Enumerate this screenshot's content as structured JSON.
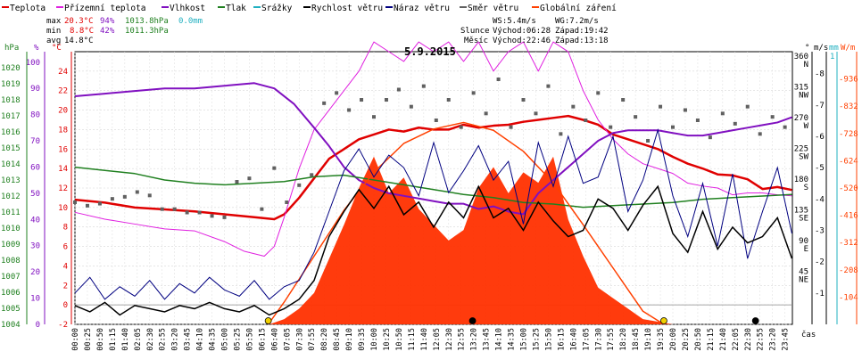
{
  "chart_data": {
    "type": "line",
    "title": "5.9.2015",
    "legend": [
      {
        "label": "Teplota",
        "color": "#e00000"
      },
      {
        "label": "Přízemní teplota",
        "color": "#e020e0"
      },
      {
        "label": "Vlhkost",
        "color": "#8010c0"
      },
      {
        "label": "Tlak",
        "color": "#208020"
      },
      {
        "label": "Srážky",
        "color": "#20b0c0"
      },
      {
        "label": "Rychlost větru",
        "color": "#000000"
      },
      {
        "label": "Náraz větru",
        "color": "#000080"
      },
      {
        "label": "Směr větru",
        "color": "#606060"
      },
      {
        "label": "Globální záření",
        "color": "#ff4000"
      }
    ],
    "stats": {
      "max": {
        "label": "max",
        "temp": "20.3°C",
        "hum": "94%",
        "press": "1013.8hPa",
        "rain": "0.0mm"
      },
      "min": {
        "label": "min",
        "temp": "8.8°C",
        "hum": "42%",
        "press": "1011.3hPa"
      },
      "avg": {
        "label": "avg",
        "temp": "14.8°C"
      }
    },
    "wind": {
      "ws": "WS:5.4m/s",
      "wg": "WG:7.2m/s"
    },
    "sun": {
      "label": "Slunce",
      "rise": "Východ:06:28",
      "set": "Západ:19:42"
    },
    "moon": {
      "label": "Měsíc",
      "rise": "Východ:22:46",
      "set": "Západ:13:18"
    },
    "axes": {
      "hpa_label": "hPa",
      "pct_label": "%",
      "deg_label": "°C",
      "hpa_ticks": [
        "1004",
        "1005",
        "1006",
        "1007",
        "1008",
        "1009",
        "1010",
        "1011",
        "1012",
        "1013",
        "1014",
        "1015",
        "1016",
        "1017",
        "1018",
        "1019",
        "1020"
      ],
      "pct_ticks": [
        "0",
        "10",
        "20",
        "30",
        "40",
        "50",
        "60",
        "70",
        "80",
        "90",
        "100"
      ],
      "temp_ticks": [
        "-2",
        "0",
        "2",
        "4",
        "6",
        "8",
        "10",
        "12",
        "14",
        "16",
        "18",
        "20",
        "22",
        "24"
      ],
      "dir_label": "°",
      "dir_ticks": [
        {
          "deg": "45",
          "c": "NE"
        },
        {
          "deg": "90",
          "c": "E"
        },
        {
          "deg": "135",
          "c": "SE"
        },
        {
          "deg": "180",
          "c": "S"
        },
        {
          "deg": "225",
          "c": "SW"
        },
        {
          "deg": "270",
          "c": "W"
        },
        {
          "deg": "315",
          "c": "NW"
        },
        {
          "deg": "360",
          "c": "N"
        }
      ],
      "ms_label": "m/s",
      "mm_label": "mm",
      "wm_label": "W/m",
      "ms_ticks": [
        "1",
        "2",
        "3",
        "4",
        "5",
        "6",
        "7",
        "8"
      ],
      "mm_top": "1",
      "wm_ticks": [
        "104",
        "208",
        "312",
        "416",
        "520",
        "624",
        "728",
        "832",
        "936"
      ],
      "time_label": "čas",
      "temp_range": [
        -2,
        26
      ],
      "pct_range": [
        0,
        104
      ],
      "hpa_range": [
        1004,
        1021
      ],
      "ms_range": [
        0,
        8.7
      ],
      "wm_range": [
        0,
        1040
      ],
      "x_range_min": [
        0,
        1440
      ],
      "x_ticks": [
        "00:00",
        "00:25",
        "00:50",
        "01:15",
        "01:40",
        "02:05",
        "02:30",
        "02:55",
        "03:20",
        "03:45",
        "04:10",
        "04:35",
        "05:00",
        "05:25",
        "05:50",
        "06:15",
        "06:40",
        "07:05",
        "07:30",
        "07:55",
        "08:20",
        "08:45",
        "09:10",
        "09:35",
        "10:00",
        "10:25",
        "10:50",
        "11:15",
        "11:40",
        "12:05",
        "12:30",
        "12:55",
        "13:20",
        "13:45",
        "14:10",
        "14:35",
        "15:00",
        "15:25",
        "15:50",
        "16:15",
        "16:40",
        "17:05",
        "17:30",
        "17:55",
        "18:20",
        "18:45",
        "19:10",
        "19:35",
        "20:00",
        "20:25",
        "20:50",
        "21:15",
        "21:40",
        "22:05",
        "22:30",
        "22:55",
        "23:20",
        "23:45"
      ]
    },
    "series": [
      {
        "name": "Teplota",
        "unit": "°C",
        "color": "#e00000",
        "width": 2.5,
        "x": [
          0,
          60,
          120,
          180,
          240,
          300,
          360,
          400,
          420,
          450,
          480,
          510,
          540,
          570,
          600,
          630,
          660,
          690,
          720,
          750,
          780,
          810,
          840,
          870,
          900,
          930,
          960,
          990,
          1020,
          1050,
          1080,
          1110,
          1140,
          1170,
          1200,
          1230,
          1260,
          1290,
          1320,
          1350,
          1380,
          1410,
          1439
        ],
        "y": [
          10.8,
          10.5,
          10.0,
          9.8,
          9.6,
          9.3,
          9.0,
          8.8,
          9.3,
          11,
          13,
          15,
          16,
          17,
          17.5,
          18,
          17.8,
          18.2,
          18,
          18,
          18.5,
          18.2,
          18.4,
          18.5,
          18.8,
          19,
          19.2,
          19.4,
          19,
          18.5,
          17.5,
          17,
          16.5,
          16,
          15.2,
          14.5,
          14.0,
          13.4,
          13.3,
          12.9,
          11.9,
          12.1,
          11.8
        ]
      },
      {
        "name": "Přízemní teplota",
        "unit": "°C",
        "color": "#e020e0",
        "width": 1,
        "x": [
          0,
          60,
          120,
          180,
          240,
          300,
          340,
          380,
          400,
          420,
          450,
          480,
          510,
          540,
          570,
          600,
          630,
          660,
          690,
          720,
          750,
          780,
          810,
          840,
          870,
          900,
          930,
          960,
          990,
          1020,
          1050,
          1080,
          1110,
          1140,
          1170,
          1200,
          1230,
          1260,
          1290,
          1320,
          1350,
          1380,
          1410,
          1439
        ],
        "y": [
          9.5,
          8.8,
          8.3,
          7.8,
          7.6,
          6.5,
          5.5,
          5.0,
          6.0,
          9.0,
          14,
          18,
          20,
          22,
          24,
          27,
          26,
          25,
          27,
          26,
          27,
          25,
          27,
          24,
          26,
          27,
          24,
          27,
          26,
          22,
          19,
          17,
          15.5,
          14.5,
          14,
          13.5,
          12.5,
          12.2,
          12,
          11.3,
          11.5,
          11.5,
          11.3,
          11.2
        ]
      },
      {
        "name": "Vlhkost",
        "unit": "%",
        "color": "#8010c0",
        "width": 2,
        "x": [
          0,
          60,
          120,
          180,
          240,
          300,
          360,
          400,
          440,
          480,
          510,
          540,
          570,
          600,
          630,
          660,
          690,
          720,
          750,
          780,
          810,
          840,
          870,
          900,
          930,
          960,
          990,
          1020,
          1050,
          1080,
          1110,
          1140,
          1170,
          1200,
          1230,
          1260,
          1290,
          1320,
          1350,
          1380,
          1410,
          1439
        ],
        "y": [
          87,
          88,
          89,
          90,
          90,
          91,
          92,
          90,
          84,
          75,
          68,
          60,
          55,
          52,
          50,
          49,
          48,
          47,
          46,
          46,
          44,
          45,
          43,
          42,
          50,
          55,
          60,
          65,
          70,
          73,
          74,
          74,
          74,
          73,
          72,
          72,
          73,
          74,
          75,
          76,
          77,
          79
        ]
      },
      {
        "name": "Tlak",
        "unit": "hPa",
        "color": "#208020",
        "width": 1.5,
        "x": [
          0,
          60,
          120,
          180,
          240,
          300,
          360,
          420,
          480,
          540,
          600,
          660,
          720,
          780,
          840,
          900,
          960,
          1020,
          1080,
          1140,
          1200,
          1260,
          1320,
          1380,
          1439
        ],
        "y": [
          1013.8,
          1013.6,
          1013.4,
          1013.0,
          1012.8,
          1012.7,
          1012.8,
          1012.9,
          1013.2,
          1013.3,
          1013.0,
          1012.7,
          1012.4,
          1012.1,
          1011.9,
          1011.6,
          1011.5,
          1011.3,
          1011.4,
          1011.5,
          1011.6,
          1011.8,
          1011.9,
          1012.0,
          1012.1
        ]
      },
      {
        "name": "Globální záření",
        "unit": "W/m",
        "color": "#ff4000",
        "width": 1.5,
        "x": [
          388,
          420,
          480,
          540,
          600,
          660,
          720,
          780,
          840,
          900,
          960,
          1020,
          1080,
          1140,
          1182
        ],
        "y": [
          0,
          85,
          260,
          435,
          580,
          690,
          745,
          770,
          740,
          660,
          540,
          380,
          215,
          50,
          0
        ]
      }
    ],
    "radiation_measured": {
      "name": "Globální záření",
      "unit": "W/m",
      "color": "#ff3000",
      "x": [
        390,
        420,
        450,
        480,
        510,
        540,
        570,
        600,
        630,
        660,
        690,
        720,
        750,
        780,
        810,
        840,
        870,
        900,
        930,
        960,
        990,
        1020,
        1050,
        1080,
        1110,
        1140,
        1170,
        1200
      ],
      "y": [
        0,
        20,
        60,
        120,
        250,
        380,
        520,
        640,
        500,
        560,
        440,
        380,
        320,
        360,
        520,
        600,
        500,
        580,
        540,
        640,
        400,
        260,
        140,
        100,
        60,
        20,
        10,
        0
      ]
    },
    "wind_speed": {
      "name": "Rychlost větru",
      "unit": "m/s",
      "color": "#000000",
      "x": [
        0,
        30,
        60,
        90,
        120,
        150,
        180,
        210,
        240,
        270,
        300,
        330,
        360,
        390,
        420,
        450,
        480,
        510,
        540,
        570,
        600,
        630,
        660,
        690,
        720,
        750,
        780,
        810,
        840,
        870,
        900,
        930,
        960,
        990,
        1020,
        1050,
        1080,
        1110,
        1140,
        1170,
        1200,
        1230,
        1260,
        1290,
        1320,
        1350,
        1380,
        1410,
        1439
      ],
      "y": [
        0.6,
        0.4,
        0.7,
        0.3,
        0.6,
        0.5,
        0.4,
        0.6,
        0.5,
        0.7,
        0.5,
        0.4,
        0.6,
        0.3,
        0.5,
        0.8,
        1.4,
        2.8,
        3.6,
        4.3,
        3.7,
        4.4,
        3.5,
        3.9,
        3.1,
        3.9,
        3.4,
        4.4,
        3.4,
        3.7,
        3.0,
        3.9,
        3.3,
        2.8,
        3.0,
        4.0,
        3.7,
        3.0,
        3.8,
        4.4,
        2.9,
        2.3,
        3.6,
        2.4,
        3.1,
        2.6,
        2.8,
        3.4,
        2.1
      ]
    },
    "wind_gust": {
      "name": "Náraz větru",
      "unit": "m/s",
      "color": "#000080",
      "x": [
        0,
        30,
        60,
        90,
        120,
        150,
        180,
        210,
        240,
        270,
        300,
        330,
        360,
        390,
        420,
        450,
        480,
        510,
        540,
        570,
        600,
        630,
        660,
        690,
        720,
        750,
        780,
        810,
        840,
        870,
        900,
        930,
        960,
        990,
        1020,
        1050,
        1080,
        1110,
        1140,
        1170,
        1200,
        1230,
        1260,
        1290,
        1320,
        1350,
        1380,
        1410,
        1439
      ],
      "y": [
        1.0,
        1.5,
        0.8,
        1.2,
        0.9,
        1.4,
        0.8,
        1.3,
        1.0,
        1.5,
        1.1,
        0.9,
        1.4,
        0.8,
        1.2,
        1.4,
        2.3,
        3.6,
        4.9,
        5.6,
        4.7,
        5.4,
        5.0,
        4.1,
        5.8,
        4.2,
        4.9,
        5.7,
        4.6,
        5.2,
        3.2,
        5.8,
        4.4,
        6.0,
        4.5,
        4.7,
        6.0,
        3.6,
        4.6,
        6.2,
        4.1,
        2.8,
        4.5,
        2.5,
        4.8,
        2.1,
        3.6,
        5.0,
        2.9
      ]
    },
    "wind_dir": {
      "name": "Směr větru",
      "unit": "°",
      "color": "#606060",
      "x": [
        0,
        25,
        50,
        75,
        100,
        125,
        150,
        175,
        200,
        225,
        250,
        275,
        300,
        325,
        350,
        375,
        400,
        425,
        450,
        475,
        500,
        525,
        550,
        575,
        600,
        625,
        650,
        675,
        700,
        725,
        750,
        775,
        800,
        825,
        850,
        875,
        900,
        925,
        950,
        975,
        1000,
        1025,
        1050,
        1075,
        1100,
        1125,
        1150,
        1175,
        1200,
        1225,
        1250,
        1275,
        1300,
        1325,
        1350,
        1375,
        1400,
        1425
      ],
      "y": [
        150,
        145,
        148,
        155,
        158,
        165,
        160,
        140,
        140,
        135,
        135,
        130,
        128,
        180,
        185,
        140,
        200,
        150,
        175,
        190,
        295,
        310,
        285,
        300,
        275,
        300,
        315,
        290,
        320,
        270,
        300,
        260,
        310,
        280,
        330,
        260,
        300,
        280,
        320,
        250,
        290,
        270,
        310,
        260,
        300,
        275,
        240,
        290,
        260,
        285,
        270,
        245,
        280,
        265,
        290,
        250,
        275,
        260
      ]
    },
    "markers": [
      {
        "type": "sunrise",
        "x": 388,
        "color": "#f0d000"
      },
      {
        "type": "sunset",
        "x": 1182,
        "color": "#f0d000"
      },
      {
        "type": "moonset",
        "x": 798,
        "color": "#000000"
      },
      {
        "type": "moonrise",
        "x": 1366,
        "color": "#000000"
      }
    ]
  }
}
